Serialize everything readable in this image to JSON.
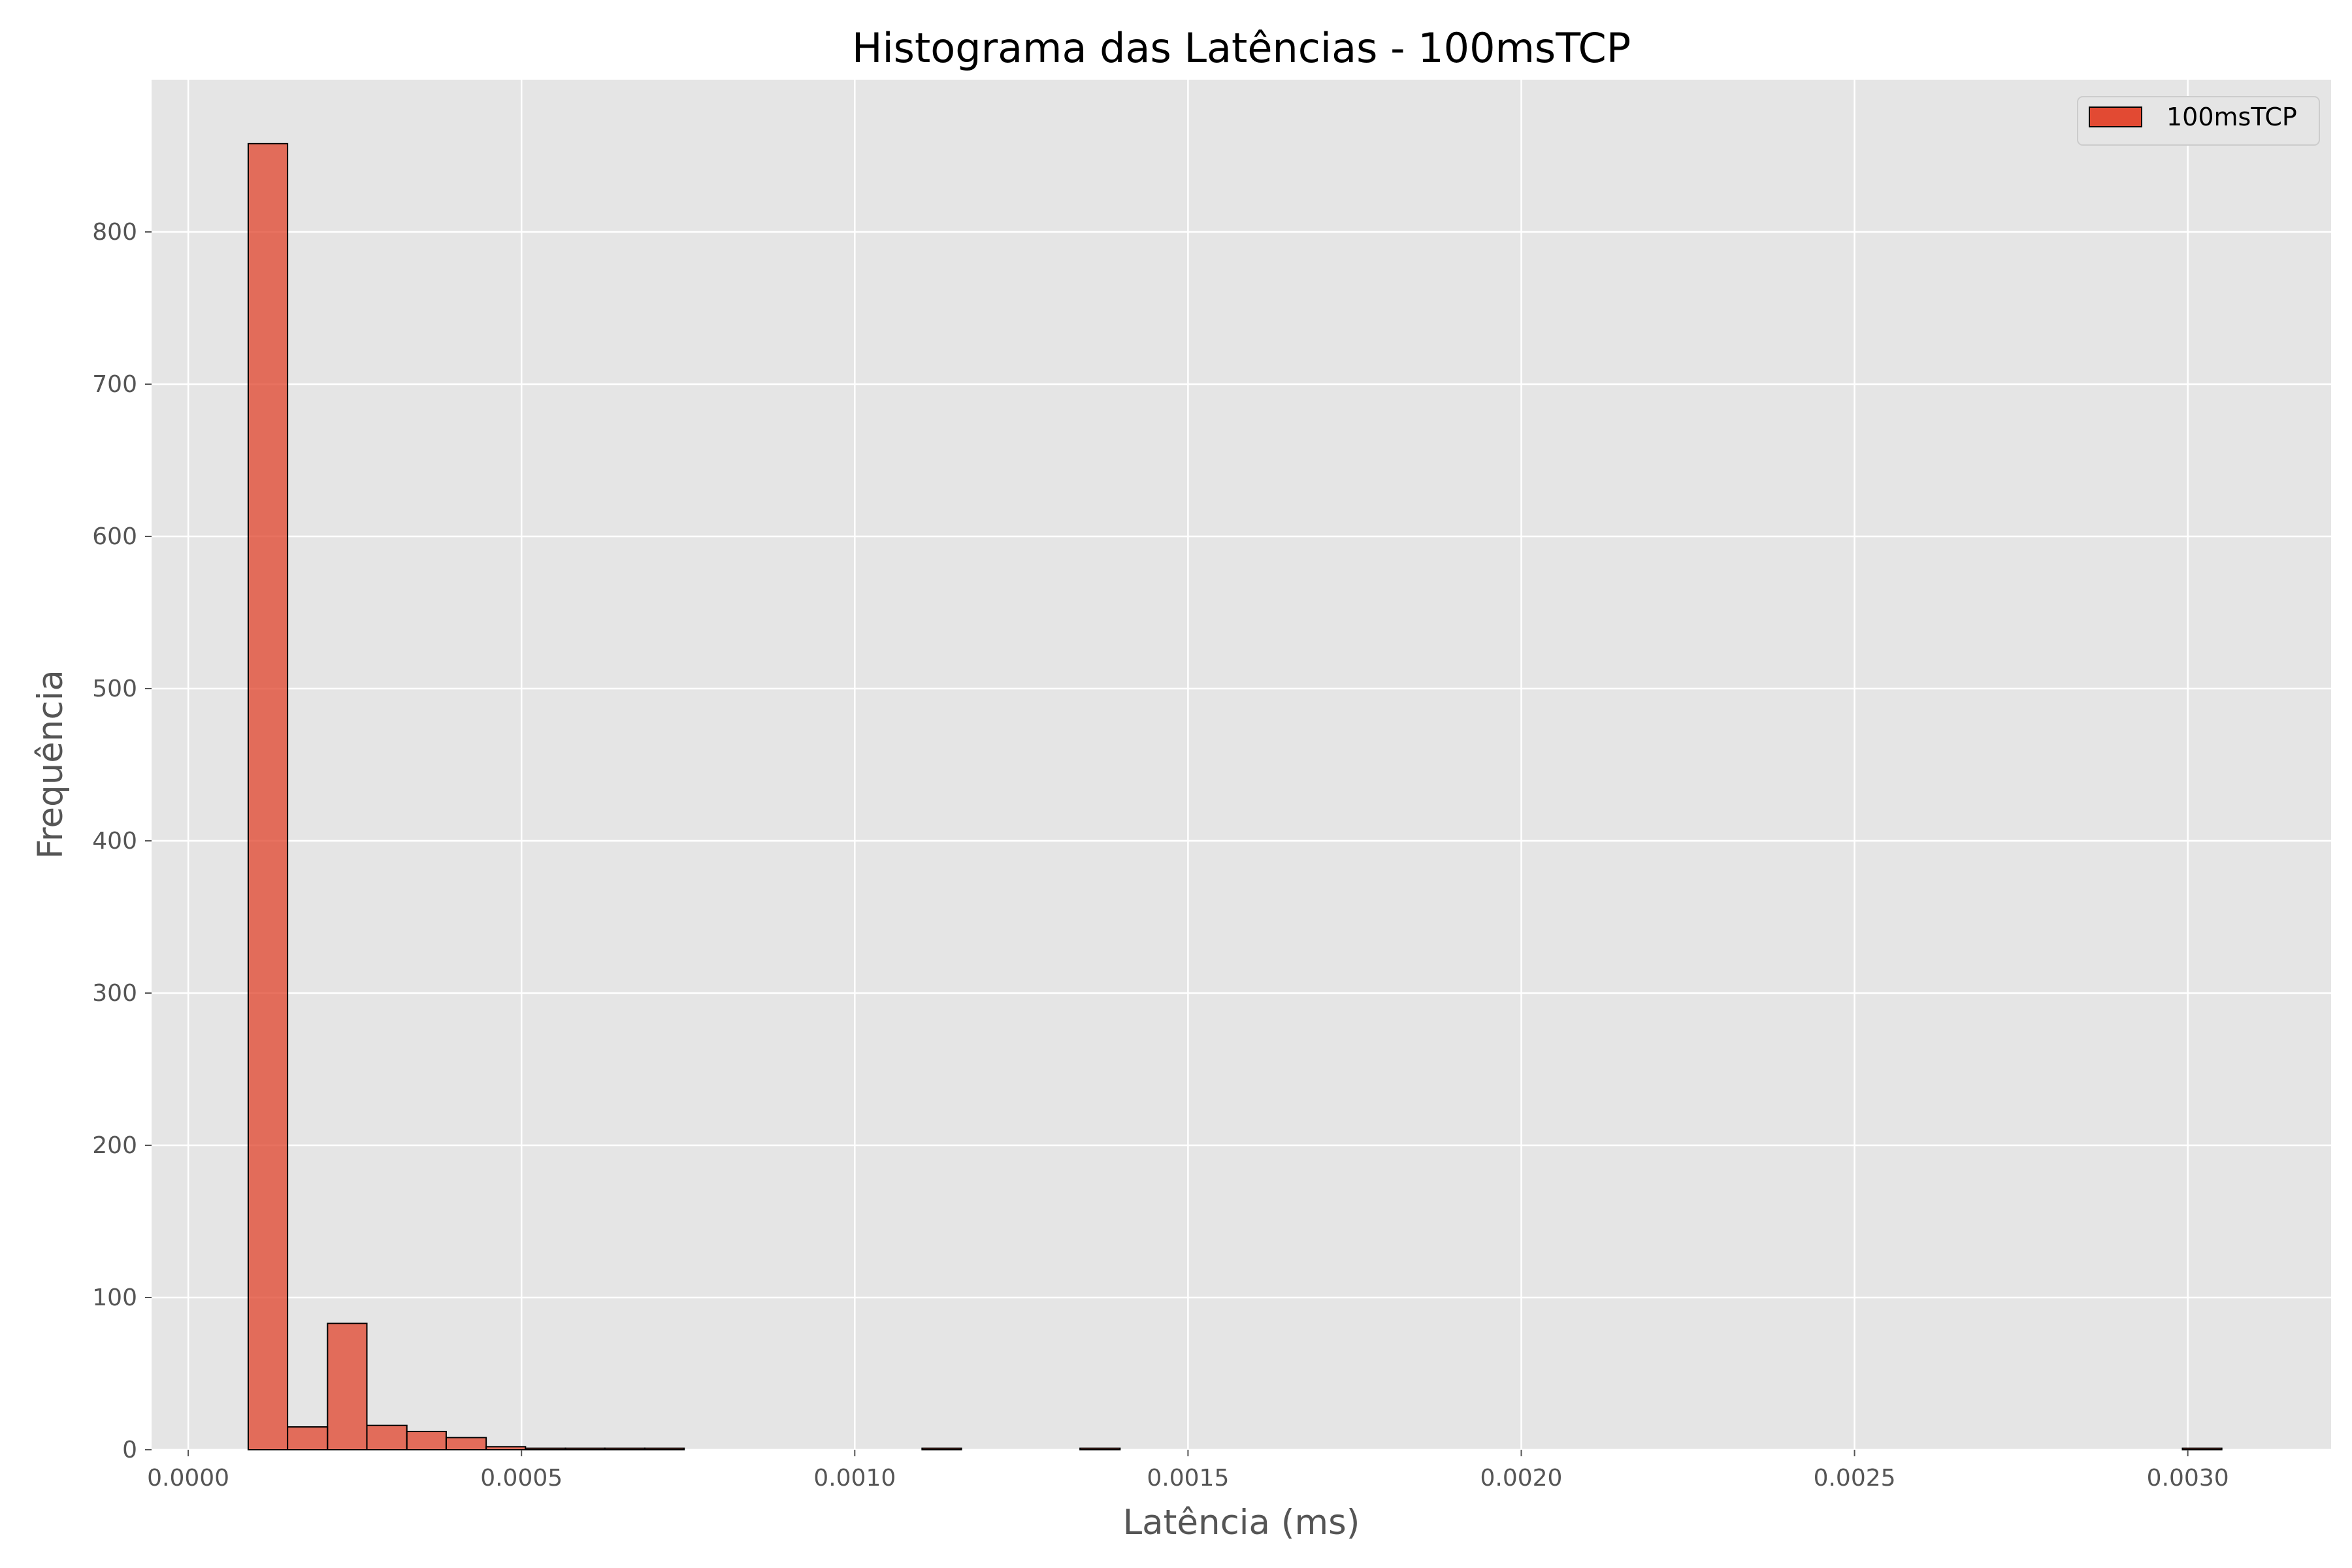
{
  "chart_data": {
    "type": "bar",
    "title": "Histograma das Latências - 100msTCP",
    "xlabel": "Latência (ms)",
    "ylabel": "Frequência",
    "xlim": [
      -5.5e-05,
      0.003215
    ],
    "ylim": [
      0,
      900
    ],
    "xticks": [
      0.0,
      0.0005,
      0.001,
      0.0015,
      0.002,
      0.0025,
      0.003
    ],
    "xtick_labels": [
      "0.0000",
      "0.0005",
      "0.0010",
      "0.0015",
      "0.0020",
      "0.0025",
      "0.0030"
    ],
    "yticks": [
      0,
      100,
      200,
      300,
      400,
      500,
      600,
      700,
      800
    ],
    "ytick_labels": [
      "0",
      "100",
      "200",
      "300",
      "400",
      "500",
      "600",
      "700",
      "800"
    ],
    "grid": true,
    "legend_position": "top-right",
    "series": [
      {
        "name": "100msTCP",
        "color": "#E24A33",
        "bin_edges": [
          9e-05,
          0.000149,
          0.000209,
          0.000268,
          0.000328,
          0.000387,
          0.000447,
          0.000506,
          0.000566,
          0.000625,
          0.000685,
          0.000744,
          0.001101,
          0.00116,
          0.001338,
          0.001398,
          0.002992,
          0.003051
        ],
        "values": [
          858,
          15,
          83,
          16,
          12,
          8,
          2,
          1,
          1,
          1,
          1,
          0,
          1,
          0,
          1,
          0,
          1
        ]
      }
    ]
  }
}
